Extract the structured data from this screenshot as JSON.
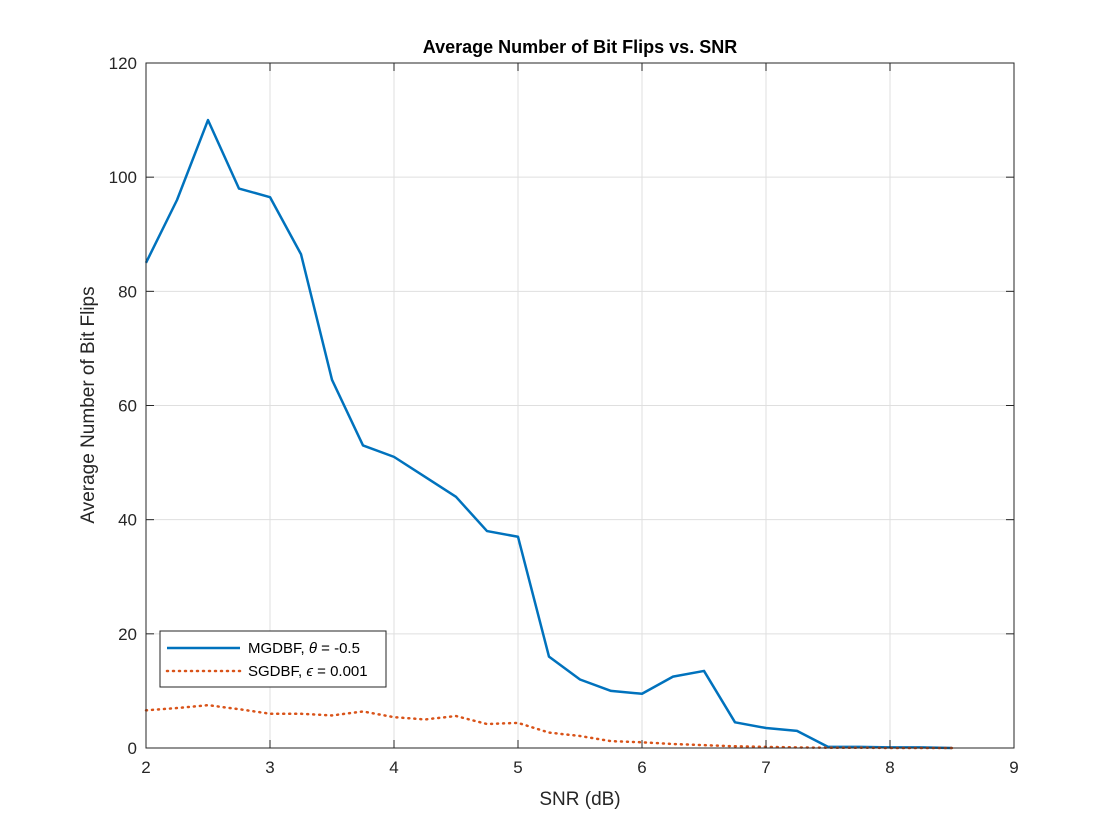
{
  "chart_data": {
    "type": "line",
    "title": "Average Number of Bit Flips vs. SNR",
    "xlabel": "SNR (dB)",
    "ylabel": "Average Number of Bit Flips",
    "xlim": [
      2,
      9
    ],
    "ylim": [
      0,
      120
    ],
    "xticks": [
      2,
      3,
      4,
      5,
      6,
      7,
      8,
      9
    ],
    "yticks": [
      0,
      20,
      40,
      60,
      80,
      100,
      120
    ],
    "grid": true,
    "legend_position": "bottom-left",
    "series": [
      {
        "legend_parts": [
          "MGDBF, ",
          "θ",
          " = -0.5"
        ],
        "color": "#0072bd",
        "style": "solid",
        "x": [
          2,
          2.25,
          2.5,
          2.75,
          3,
          3.25,
          3.5,
          3.75,
          4,
          4.25,
          4.5,
          4.75,
          5,
          5.25,
          5.5,
          5.75,
          6,
          6.25,
          6.5,
          6.75,
          7,
          7.25,
          7.5,
          7.75,
          8,
          8.25,
          8.5
        ],
        "y": [
          85,
          96,
          110,
          98,
          96.5,
          86.5,
          64.5,
          53,
          51,
          47.5,
          44,
          38,
          37,
          16,
          12,
          10,
          9.5,
          12.5,
          13.5,
          4.5,
          3.5,
          3,
          0.2,
          0.2,
          0.1,
          0.1,
          0
        ]
      },
      {
        "legend_parts": [
          "SGDBF, ",
          "ϵ",
          " = 0.001"
        ],
        "color": "#d95319",
        "style": "dotted",
        "x": [
          2,
          2.25,
          2.5,
          2.75,
          3,
          3.25,
          3.5,
          3.75,
          4,
          4.25,
          4.5,
          4.75,
          5,
          5.25,
          5.5,
          5.75,
          6,
          6.25,
          6.5,
          6.75,
          7,
          7.25,
          7.5,
          7.75,
          8,
          8.25,
          8.5
        ],
        "y": [
          6.6,
          7,
          7.5,
          6.8,
          6,
          6,
          5.7,
          6.4,
          5.4,
          5,
          5.6,
          4.2,
          4.4,
          2.7,
          2.1,
          1.2,
          1,
          0.7,
          0.5,
          0.3,
          0.2,
          0.1,
          0.05,
          0.05,
          0,
          0,
          0
        ]
      }
    ]
  }
}
